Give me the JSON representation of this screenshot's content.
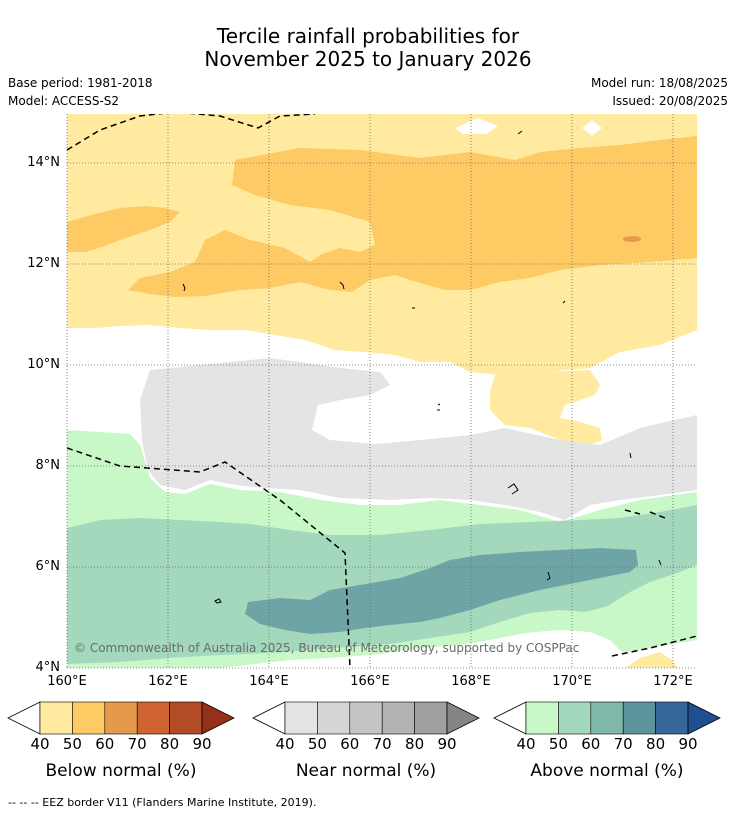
{
  "title_line1": "Tercile rainfall probabilities for",
  "title_line2": "November 2025 to January 2026",
  "base_period": "Base period: 1981-2018",
  "model": "Model: ACCESS-S2",
  "model_run": "Model run: 18/08/2025",
  "issued": "Issued: 20/08/2025",
  "copyright": "© Commonwealth of Australia 2025, Bureau of Meteorology, supported by COSPPac",
  "footnote": "--  --  -- EEZ border V11 (Flanders Marine Institute, 2019).",
  "map": {
    "lat_labels": [
      "14°N",
      "12°N",
      "10°N",
      "8°N",
      "6°N",
      "4°N"
    ],
    "lon_labels": [
      "160°E",
      "162°E",
      "164°E",
      "166°E",
      "168°E",
      "170°E",
      "172°E"
    ]
  },
  "colorbars": [
    {
      "name": "below",
      "title": "Below normal (%)",
      "ticks": [
        "40",
        "50",
        "60",
        "70",
        "80",
        "90"
      ],
      "colors": [
        "#ffeaa0",
        "#fdca63",
        "#e5994a",
        "#cf6432",
        "#b34a28",
        "#963019"
      ]
    },
    {
      "name": "near",
      "title": "Near normal (%)",
      "ticks": [
        "40",
        "50",
        "60",
        "70",
        "80",
        "90"
      ],
      "colors": [
        "#e3e3e3",
        "#d5d5d5",
        "#c5c5c5",
        "#b3b3b3",
        "#a0a0a0",
        "#858585"
      ]
    },
    {
      "name": "above",
      "title": "Above normal (%)",
      "ticks": [
        "40",
        "50",
        "60",
        "70",
        "80",
        "90"
      ],
      "colors": [
        "#c8f7c8",
        "#a3d8bd",
        "#80b9ab",
        "#5c959e",
        "#356799",
        "#1e4f8f"
      ]
    }
  ]
}
